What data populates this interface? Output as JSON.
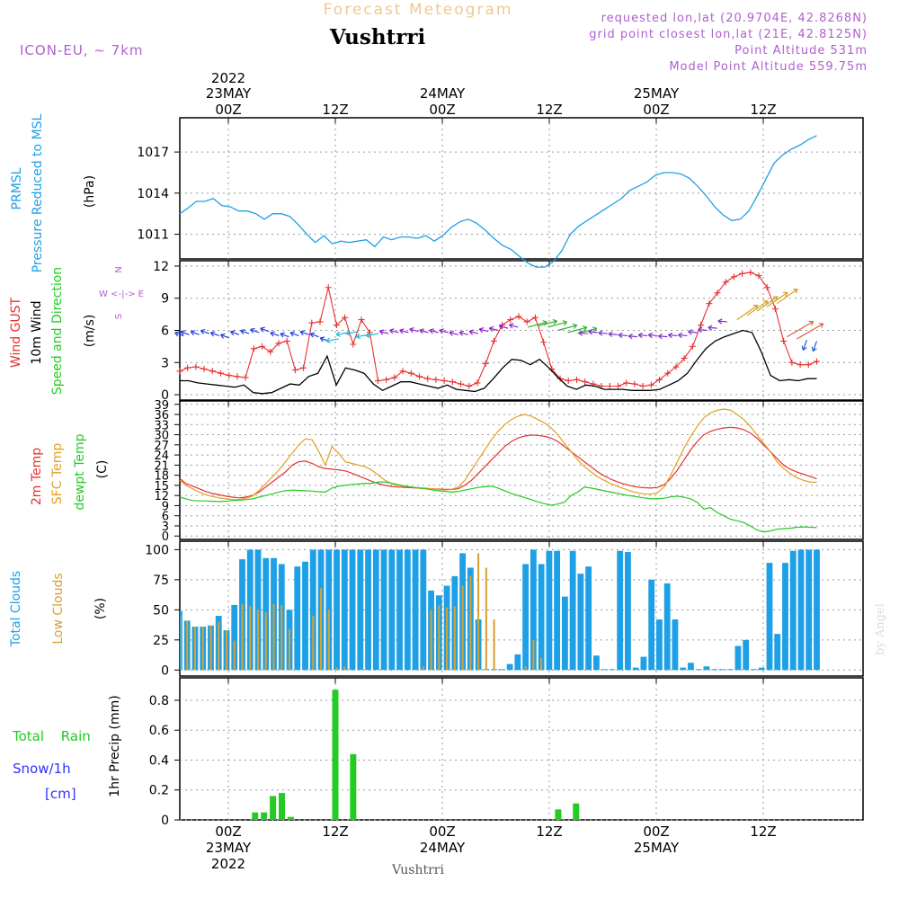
{
  "header": {
    "product": "Forecast Meteogram",
    "location": "Vushtrri",
    "model": "ICON-EU, ~ 7km",
    "requested": "requested lon,lat (20.9704E, 42.8268N)",
    "gridpoint": "grid point closest lon,lat (21E, 42.8125N)",
    "point_alt": "Point Altitude 531m",
    "model_alt": "Model Point Altitude 559.75m",
    "footer_location": "Vushtrri",
    "watermark": "by Angel"
  },
  "colors": {
    "pressure": "#1ea0e6",
    "gust": "#e83030",
    "wind": "#000000",
    "temp2m": "#e83030",
    "sfc": "#e0a020",
    "dewpt": "#22cc22",
    "total_cloud": "#1ea0e6",
    "low_cloud": "#d8a030",
    "rain": "#22cc22",
    "snow": "#3030ff",
    "purple": "#b060d0"
  },
  "time_axis": {
    "top_ticks": [
      {
        "h": 0,
        "lines": [
          "2022",
          "23MAY",
          "00Z"
        ]
      },
      {
        "h": 12,
        "lines": [
          "",
          "",
          "12Z"
        ]
      },
      {
        "h": 24,
        "lines": [
          "",
          "24MAY",
          "00Z"
        ]
      },
      {
        "h": 36,
        "lines": [
          "",
          "",
          "12Z"
        ]
      },
      {
        "h": 48,
        "lines": [
          "",
          "25MAY",
          "00Z"
        ]
      },
      {
        "h": 60,
        "lines": [
          "",
          "",
          "12Z"
        ]
      }
    ],
    "bottom_ticks": [
      {
        "h": 0,
        "lines": [
          "00Z",
          "23MAY",
          "2022"
        ]
      },
      {
        "h": 12,
        "lines": [
          "12Z",
          "",
          ""
        ]
      },
      {
        "h": 24,
        "lines": [
          "00Z",
          "24MAY",
          ""
        ]
      },
      {
        "h": 36,
        "lines": [
          "12Z",
          "",
          ""
        ]
      },
      {
        "h": 48,
        "lines": [
          "00Z",
          "25MAY",
          ""
        ]
      },
      {
        "h": 60,
        "lines": [
          "12Z",
          "",
          ""
        ]
      }
    ]
  },
  "chart_data": [
    {
      "type": "line",
      "panel": "pressure",
      "label_lines": [
        "PRMSL",
        "Pressure Reduced to MSL"
      ],
      "ylabel": "(hPa)",
      "ytick_labels": [
        "1011",
        "1014",
        "1017"
      ],
      "yticks": [
        1011,
        1014,
        1017
      ],
      "ylim": [
        1009.2,
        1019.5
      ],
      "x_start": -5.5,
      "x_step": 1,
      "values": [
        1012.5,
        1012.9,
        1013.4,
        1013.4,
        1013.6,
        1013.1,
        1013.0,
        1012.7,
        1012.7,
        1012.5,
        1012.1,
        1012.5,
        1012.5,
        1012.3,
        1011.7,
        1011.0,
        1010.4,
        1010.9,
        1010.3,
        1010.5,
        1010.4,
        1010.5,
        1010.6,
        1010.1,
        1010.8,
        1010.6,
        1010.8,
        1010.8,
        1010.7,
        1010.9,
        1010.5,
        1010.9,
        1011.5,
        1011.9,
        1012.1,
        1011.8,
        1011.3,
        1010.7,
        1010.2,
        1009.9,
        1009.4,
        1008.9,
        1008.6,
        1008.6,
        1009.0,
        1009.8,
        1011.0,
        1011.6,
        1012.0,
        1012.4,
        1012.8,
        1013.2,
        1013.6,
        1014.2,
        1014.5,
        1014.8,
        1015.3,
        1015.5,
        1015.5,
        1015.4,
        1015.1,
        1014.5,
        1013.8,
        1013.0,
        1012.4,
        1012.0,
        1012.1,
        1012.7,
        1013.8,
        1015.0,
        1016.2,
        1016.8,
        1017.2,
        1017.5,
        1017.9,
        1018.2
      ]
    },
    {
      "type": "line",
      "panel": "wind",
      "label_red": "Wind GUST",
      "label_black": "10m Wind",
      "label_green": "Speed and Direction",
      "ylabel": "(m/s)",
      "compass": [
        "N",
        "W <-|-> E",
        "S"
      ],
      "ytick_labels": [
        "0",
        "3",
        "6",
        "9",
        "12"
      ],
      "yticks": [
        0,
        3,
        6,
        9,
        12
      ],
      "ylim": [
        -0.5,
        12.5
      ],
      "x_start": -5.5,
      "x_step": 1,
      "series": [
        {
          "role": "gust",
          "values": [
            2.2,
            2.5,
            2.6,
            2.4,
            2.2,
            2.0,
            1.8,
            1.7,
            1.6,
            4.3,
            4.5,
            4.0,
            4.8,
            5.0,
            2.3,
            2.5,
            6.7,
            6.8,
            10.0,
            6.5,
            7.2,
            4.7,
            7.0,
            5.8,
            1.3,
            1.4,
            1.6,
            2.2,
            2.0,
            1.7,
            1.5,
            1.4,
            1.3,
            1.2,
            1.0,
            0.8,
            1.1,
            2.9,
            5.0,
            6.5,
            7.0,
            7.3,
            6.8,
            7.2,
            4.9,
            2.4,
            1.5,
            1.3,
            1.4,
            1.2,
            1.0,
            0.8,
            0.8,
            0.8,
            1.1,
            1.0,
            0.8,
            0.9,
            1.4,
            2.0,
            2.6,
            3.4,
            4.5,
            6.5,
            8.5,
            9.5,
            10.5,
            11.0,
            11.3,
            11.4,
            11.1,
            10.0,
            8.0,
            5.0,
            3.0,
            2.8,
            2.8,
            3.1
          ]
        },
        {
          "role": "wind",
          "values": [
            1.3,
            1.3,
            1.1,
            1.0,
            0.9,
            0.8,
            0.7,
            0.9,
            0.2,
            0.1,
            0.2,
            0.6,
            1.0,
            0.9,
            1.7,
            2.0,
            3.6,
            0.9,
            2.5,
            2.3,
            2.0,
            1.0,
            0.4,
            0.8,
            1.2,
            1.2,
            1.0,
            0.8,
            0.6,
            0.9,
            0.5,
            0.4,
            0.3,
            0.6,
            1.5,
            2.5,
            3.3,
            3.2,
            2.8,
            3.3,
            2.5,
            1.6,
            0.8,
            0.5,
            0.9,
            0.8,
            0.5,
            0.5,
            0.5,
            0.4,
            0.4,
            0.4,
            0.5,
            0.9,
            1.3,
            2.0,
            3.2,
            4.3,
            5.0,
            5.4,
            5.7,
            6.0,
            5.8,
            4.0,
            1.8,
            1.3,
            1.4,
            1.3,
            1.5,
            1.5
          ]
        },
        {
          "role": "arrows",
          "values": [
            5.5,
            5.6,
            5.6,
            5.7,
            5.5,
            5.3,
            5.6,
            5.7,
            5.8,
            5.9,
            5.5,
            5.4,
            5.5,
            5.6,
            5.4,
            5.0,
            5.2,
            5.8,
            5.9,
            5.6,
            5.7,
            5.7,
            5.8,
            5.8,
            5.9,
            5.8,
            5.8,
            5.8,
            5.6,
            5.6,
            5.7,
            5.9,
            6.0,
            6.2,
            6.3,
            6.3,
            6.4,
            6.3,
            6.0,
            5.8,
            5.7,
            5.7,
            5.8,
            5.7,
            5.6,
            5.5,
            5.4,
            5.5,
            5.5,
            5.4,
            5.5,
            5.5,
            5.8,
            6.0,
            6.2,
            6.8,
            7.0,
            7.4,
            7.8,
            8.2,
            8.5,
            5.4,
            5.2,
            5.1,
            5.0
          ]
        }
      ]
    },
    {
      "type": "line",
      "panel": "temperature",
      "label_lines": [
        "2m Temp",
        "SFC Temp",
        "dewpt Temp"
      ],
      "ylabel": "(C)",
      "ytick_labels": [
        "0",
        "3",
        "6",
        "9",
        "12",
        "15",
        "18",
        "21",
        "24",
        "27",
        "30",
        "33",
        "36",
        "39"
      ],
      "yticks": [
        0,
        3,
        6,
        9,
        12,
        15,
        18,
        21,
        24,
        27,
        30,
        33,
        36,
        39
      ],
      "ylim": [
        -1,
        40
      ],
      "x_start": -5.5,
      "x_step": 1,
      "series": [
        {
          "role": "temp2m",
          "values": [
            17,
            15.5,
            14.8,
            14.0,
            13.2,
            12.6,
            12.2,
            11.8,
            11.5,
            11.3,
            11.5,
            12.0,
            13.0,
            14.5,
            16.0,
            17.5,
            19.0,
            21.0,
            22.0,
            22.2,
            21.5,
            20.5,
            20.0,
            19.8,
            19.6,
            19.3,
            18.6,
            17.8,
            17.0,
            16.2,
            15.5,
            15.0,
            14.7,
            14.5,
            14.4,
            14.3,
            14.2,
            14.1,
            14.0,
            13.9,
            13.8,
            13.8,
            14.0,
            15.0,
            16.5,
            18.5,
            20.5,
            22.5,
            24.5,
            26.5,
            28.0,
            29.0,
            29.6,
            29.9,
            29.8,
            29.5,
            29.0,
            28.0,
            26.5,
            25.0,
            23.5,
            22.0,
            20.5,
            19.0,
            17.8,
            16.8,
            16.0,
            15.4,
            14.9,
            14.5,
            14.3,
            14.2,
            14.4,
            15.2,
            17.0,
            19.5,
            22.5,
            25.5,
            28.0,
            30.0,
            31.0,
            31.6,
            32.0,
            32.2,
            32.0,
            31.5,
            30.5,
            29.0,
            27.0,
            25.0,
            23.0,
            21.0,
            19.8,
            19.0,
            18.3,
            17.6,
            17.0
          ]
        },
        {
          "role": "sfc",
          "values": [
            16.5,
            15.0,
            14.0,
            13.0,
            12.2,
            11.7,
            11.3,
            11.0,
            10.8,
            10.8,
            11.2,
            11.8,
            13.5,
            15.5,
            17.5,
            19.5,
            22.0,
            24.5,
            27.0,
            28.8,
            28.5,
            25.0,
            21.0,
            26.5,
            24.5,
            22.0,
            21.5,
            21.0,
            20.5,
            19.5,
            18.0,
            16.5,
            15.5,
            15.0,
            14.7,
            14.5,
            14.3,
            14.2,
            14.0,
            13.8,
            13.6,
            13.8,
            14.5,
            16.5,
            19.5,
            22.5,
            25.5,
            28.5,
            31.0,
            33.0,
            34.5,
            35.5,
            36.0,
            35.5,
            34.5,
            33.5,
            32.0,
            30.0,
            27.5,
            25.0,
            22.5,
            20.5,
            19.0,
            17.5,
            16.5,
            15.5,
            14.7,
            14.0,
            13.3,
            12.8,
            12.5,
            12.4,
            12.8,
            14.5,
            18.0,
            22.0,
            26.0,
            29.5,
            32.5,
            35.0,
            36.5,
            37.2,
            37.6,
            37.3,
            36.0,
            34.5,
            32.5,
            30.0,
            27.5,
            25.0,
            22.0,
            20.0,
            18.5,
            17.3,
            16.5,
            16.0,
            15.9
          ]
        },
        {
          "role": "dewpt",
          "values": [
            11.5,
            11.0,
            10.5,
            10.4,
            10.4,
            10.3,
            10.2,
            10.3,
            10.5,
            10.6,
            10.8,
            11.0,
            11.5,
            12.0,
            12.5,
            13.0,
            13.4,
            13.6,
            13.5,
            13.4,
            13.3,
            13.1,
            13.0,
            14.2,
            14.8,
            15.0,
            15.3,
            15.4,
            15.6,
            15.6,
            16.0,
            16.0,
            15.6,
            15.2,
            14.8,
            14.5,
            14.2,
            14.0,
            13.7,
            13.4,
            13.2,
            13.0,
            13.2,
            13.6,
            14.0,
            14.4,
            14.6,
            14.8,
            14.2,
            13.4,
            12.6,
            12.0,
            11.4,
            10.8,
            10.1,
            9.6,
            9.1,
            9.5,
            10.0,
            12.0,
            13.0,
            14.5,
            14.2,
            13.8,
            13.4,
            13.0,
            12.6,
            12.2,
            11.9,
            11.6,
            11.3,
            11.0,
            11.0,
            11.2,
            11.6,
            11.8,
            11.5,
            11.0,
            10.0,
            8.0,
            8.4,
            7.0,
            6.0,
            5.0,
            4.5,
            4.0,
            3.0,
            1.8,
            1.2,
            1.5,
            2.0,
            2.2,
            2.3,
            2.6,
            2.7,
            2.6,
            2.5
          ]
        }
      ]
    },
    {
      "type": "bar",
      "panel": "clouds",
      "label_total": "Total Clouds",
      "label_low": "Low Clouds",
      "ylabel": "(%)",
      "ytick_labels": [
        "0",
        "25",
        "50",
        "75",
        "100"
      ],
      "yticks": [
        0,
        25,
        50,
        75,
        100
      ],
      "ylim": [
        -5,
        107
      ],
      "x_start": -5.5,
      "x_step": 1,
      "series": [
        {
          "role": "total",
          "values": [
            49,
            41,
            36,
            36,
            37,
            45,
            33,
            54,
            92,
            100,
            100,
            93,
            93,
            88,
            50,
            86,
            90,
            100,
            100,
            100,
            100,
            100,
            100,
            100,
            100,
            100,
            100,
            100,
            100,
            100,
            100,
            100,
            66,
            62,
            70,
            78,
            97,
            85,
            42,
            0,
            0,
            0,
            5,
            13,
            88,
            100,
            88,
            99,
            99,
            61,
            99,
            80,
            86,
            12,
            0,
            0,
            99,
            98,
            2,
            11,
            75,
            42,
            72,
            42,
            2,
            6,
            0,
            3,
            0,
            0,
            0,
            20,
            25,
            0,
            2,
            89,
            30,
            89,
            99,
            100,
            100,
            100
          ]
        },
        {
          "role": "low",
          "values": [
            45,
            41,
            36,
            36,
            37,
            40,
            33,
            24,
            55,
            53,
            50,
            48,
            55,
            54,
            34,
            0,
            0,
            45,
            68,
            50,
            2,
            3,
            0,
            0,
            0,
            0,
            0,
            0,
            0,
            0,
            0,
            3,
            50,
            54,
            52,
            53,
            70,
            78,
            97,
            85,
            42,
            0,
            0,
            0,
            3,
            25,
            10,
            0,
            0,
            0,
            0,
            0,
            0,
            0,
            0,
            0,
            0,
            0,
            0,
            0,
            0,
            0,
            0,
            0,
            0,
            0,
            0,
            0,
            0,
            0,
            0,
            0,
            0,
            0,
            0,
            0,
            0,
            0,
            0,
            0,
            0,
            0
          ]
        }
      ]
    },
    {
      "type": "bar",
      "panel": "precip",
      "label_rain": "Total Rain",
      "label_snow_lines": [
        "Snow/1h",
        "[cm]"
      ],
      "ylabel": "1hr Precip (mm)",
      "ytick_labels": [
        "0",
        "0.2",
        "0.4",
        "0.6",
        "0.8"
      ],
      "yticks": [
        0,
        0.2,
        0.4,
        0.6,
        0.8
      ],
      "ylim": [
        0,
        0.95
      ],
      "x": [
        3,
        4,
        5,
        6,
        7,
        12,
        14,
        37,
        39
      ],
      "values": [
        0.05,
        0.05,
        0.16,
        0.18,
        0.02,
        0.87,
        0.44,
        0.07,
        0.11
      ]
    }
  ]
}
